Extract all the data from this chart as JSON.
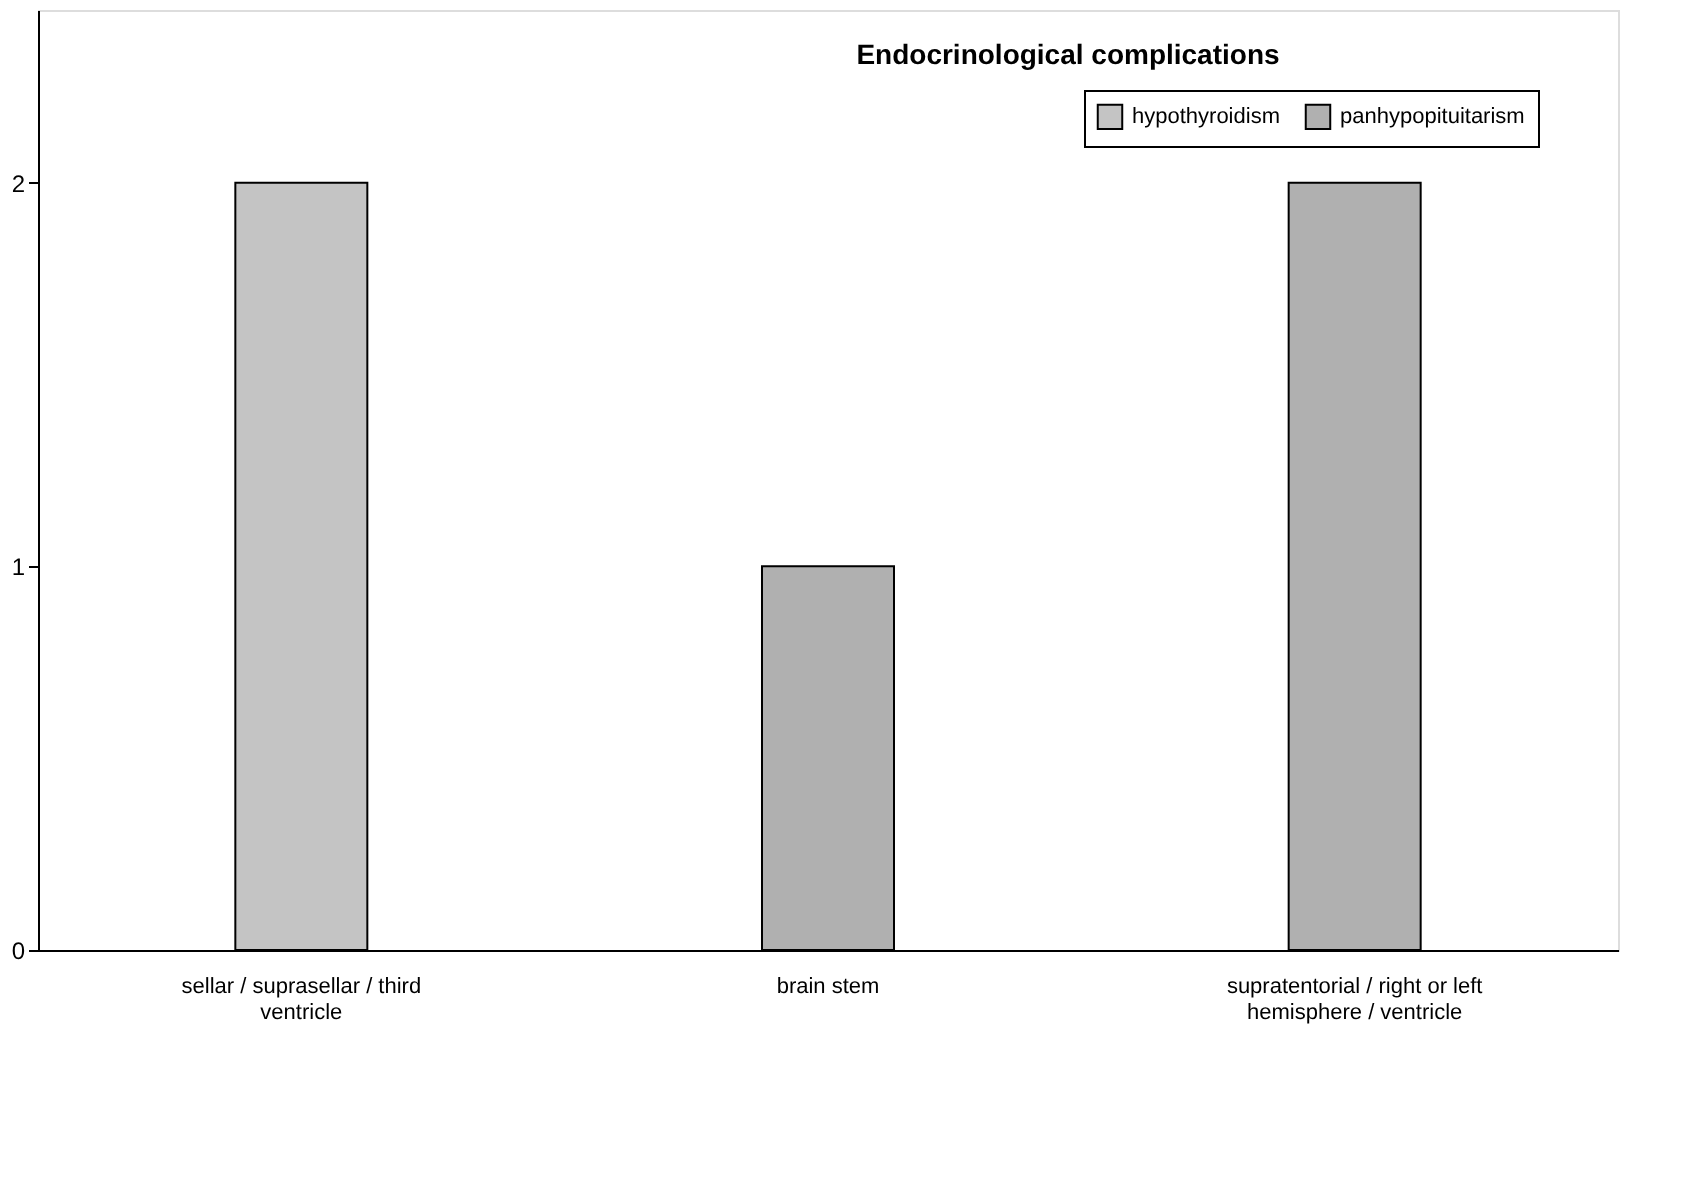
{
  "chart_data": {
    "type": "bar",
    "title": "Endocrinological complications",
    "categories": [
      "sellar / suprasellar / third ventricle",
      "brain stem",
      "supratentorial / right or left hemisphere / ventricle"
    ],
    "series": [
      {
        "name": "hypothyroidism",
        "color": "#c4c4c4",
        "values": [
          2,
          null,
          null
        ]
      },
      {
        "name": "panhypopituitarism",
        "color": "#b0b0b0",
        "values": [
          null,
          1,
          2
        ]
      }
    ],
    "ylim": [
      0,
      2.45
    ],
    "yticks": [
      0,
      1,
      2
    ],
    "grid": false,
    "legend": "top right"
  }
}
